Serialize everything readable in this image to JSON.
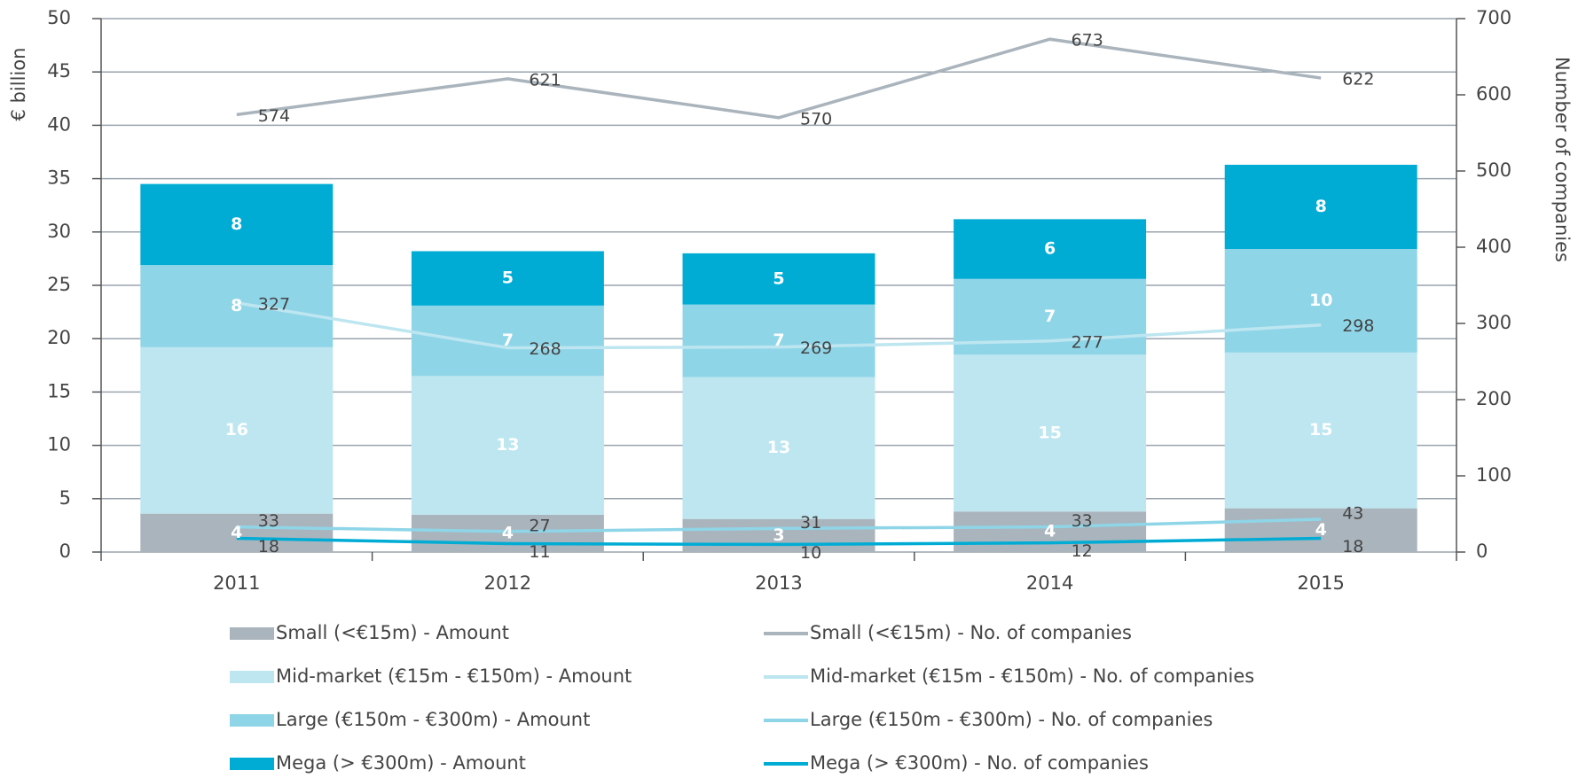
{
  "chart_data": {
    "type": "bar",
    "categories": [
      "2011",
      "2012",
      "2013",
      "2014",
      "2015"
    ],
    "ylabel": "€ billion",
    "y2label": "Number of companies",
    "ylim": [
      0,
      50
    ],
    "yticks": [
      0,
      5,
      10,
      15,
      20,
      25,
      30,
      35,
      40,
      45,
      50
    ],
    "y2lim": [
      0,
      700
    ],
    "y2ticks": [
      0,
      100,
      200,
      300,
      400,
      500,
      600,
      700
    ],
    "grid": true,
    "series": [
      {
        "name": "Small (<€15m) - Amount",
        "type": "bar",
        "color": "#aab4bc",
        "values": [
          3.6,
          3.5,
          3.1,
          3.8,
          4.1
        ],
        "value_labels": [
          "4",
          "4",
          "3",
          "4",
          "4"
        ]
      },
      {
        "name": "Mid-market (€15m - €150m) - Amount",
        "type": "bar",
        "color": "#bde6f0",
        "values": [
          15.6,
          13.0,
          13.3,
          14.7,
          14.6
        ],
        "value_labels": [
          "16",
          "13",
          "13",
          "15",
          "15"
        ]
      },
      {
        "name": "Large (€150m - €300m) - Amount",
        "type": "bar",
        "color": "#8fd5e8",
        "values": [
          7.7,
          6.6,
          6.8,
          7.1,
          9.7
        ],
        "value_labels": [
          "8",
          "7",
          "7",
          "7",
          "10"
        ]
      },
      {
        "name": "Mega (> €300m) - Amount",
        "type": "bar",
        "color": "#00acd4",
        "values": [
          7.6,
          5.1,
          4.8,
          5.6,
          7.9
        ],
        "value_labels": [
          "8",
          "5",
          "5",
          "6",
          "8"
        ]
      },
      {
        "name": "Small (<€15m) - No. of companies",
        "type": "line",
        "axis": "y2",
        "color": "#aab4bc",
        "values": [
          574,
          621,
          570,
          673,
          622
        ]
      },
      {
        "name": "Mid-market (€15m - €150m) - No. of companies",
        "type": "line",
        "axis": "y2",
        "color": "#bde6f0",
        "values": [
          327,
          268,
          269,
          277,
          298
        ]
      },
      {
        "name": "Large (€150m - €300m) - No. of companies",
        "type": "line",
        "axis": "y2",
        "color": "#8fd5e8",
        "values": [
          33,
          27,
          31,
          33,
          43
        ]
      },
      {
        "name": "Mega (> €300m) - No. of companies",
        "type": "line",
        "axis": "y2",
        "color": "#00acd4",
        "values": [
          18,
          11,
          10,
          12,
          18
        ]
      }
    ]
  }
}
